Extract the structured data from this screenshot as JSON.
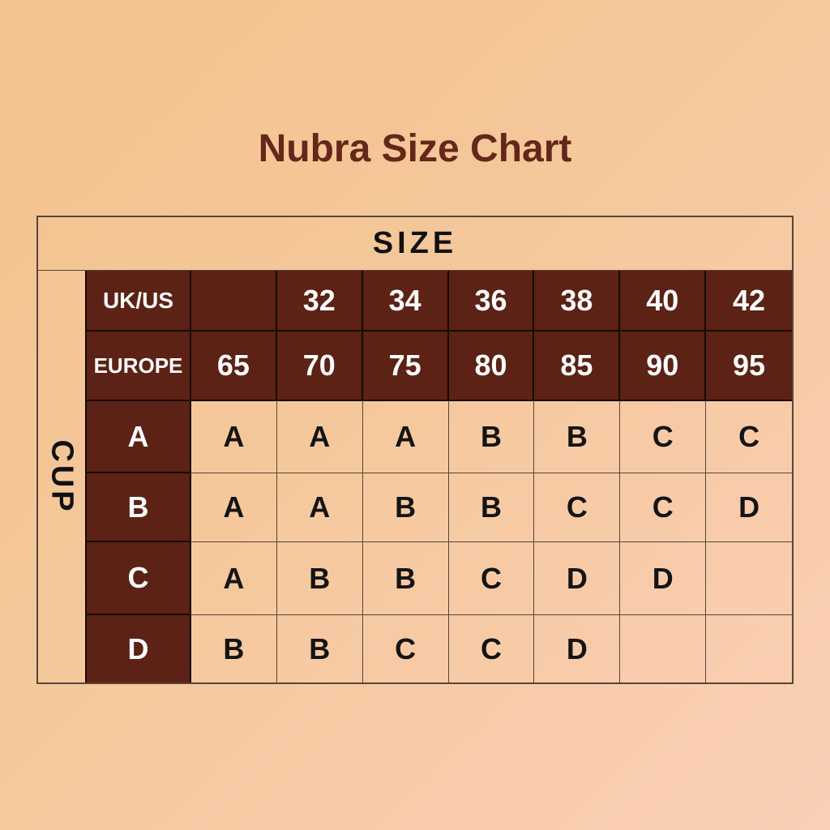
{
  "page": {
    "title": "Nubra Size Chart"
  },
  "colors": {
    "background_top_left": "#F2C38C",
    "background_bottom_right": "#FBCFB6",
    "dark_cell_background": "#5B2215",
    "title_text": "#64271A",
    "dark_cell_text": "#FFFFFF",
    "light_cell_text": "#141414",
    "grid_line_light": "#55463B",
    "grid_line_dark": "#170A05"
  },
  "chart_data": {
    "type": "table",
    "title": "Nubra Size Chart",
    "size_label": "SIZE",
    "cup_label": "CUP",
    "rows": [
      {
        "label": "UK/US",
        "kind": "band-header",
        "values": [
          "",
          "32",
          "34",
          "36",
          "38",
          "40",
          "42"
        ]
      },
      {
        "label": "EUROPE",
        "kind": "band-header",
        "values": [
          "65",
          "70",
          "75",
          "80",
          "85",
          "90",
          "95"
        ]
      },
      {
        "label": "A",
        "kind": "cup-row",
        "values": [
          "A",
          "A",
          "A",
          "B",
          "B",
          "C",
          "C"
        ]
      },
      {
        "label": "B",
        "kind": "cup-row",
        "values": [
          "A",
          "A",
          "B",
          "B",
          "C",
          "C",
          "D"
        ]
      },
      {
        "label": "C",
        "kind": "cup-row",
        "values": [
          "A",
          "B",
          "B",
          "C",
          "D",
          "D",
          ""
        ]
      },
      {
        "label": "D",
        "kind": "cup-row",
        "values": [
          "B",
          "B",
          "C",
          "C",
          "D",
          "",
          ""
        ]
      }
    ]
  }
}
